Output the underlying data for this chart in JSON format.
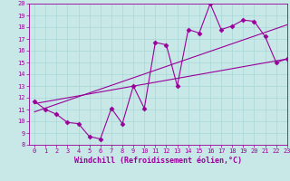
{
  "xlabel": "Windchill (Refroidissement éolien,°C)",
  "bg_color": "#c8e8e8",
  "line_color": "#990099",
  "xlim": [
    -0.5,
    23
  ],
  "ylim": [
    8,
    20
  ],
  "xticks": [
    0,
    1,
    2,
    3,
    4,
    5,
    6,
    7,
    8,
    9,
    10,
    11,
    12,
    13,
    14,
    15,
    16,
    17,
    18,
    19,
    20,
    21,
    22,
    23
  ],
  "yticks": [
    8,
    9,
    10,
    11,
    12,
    13,
    14,
    15,
    16,
    17,
    18,
    19,
    20
  ],
  "data_x": [
    0,
    1,
    2,
    3,
    4,
    5,
    6,
    7,
    8,
    9,
    10,
    11,
    12,
    13,
    14,
    15,
    16,
    17,
    18,
    19,
    20,
    21,
    22,
    23
  ],
  "data_y": [
    11.7,
    11.0,
    10.6,
    9.9,
    9.8,
    8.7,
    8.5,
    11.1,
    9.8,
    13.0,
    11.1,
    16.7,
    16.5,
    13.0,
    17.8,
    17.5,
    20.0,
    17.8,
    18.1,
    18.6,
    18.5,
    17.2,
    15.0,
    15.3
  ],
  "trend1_x": [
    0,
    23
  ],
  "trend1_y": [
    10.8,
    18.2
  ],
  "trend2_x": [
    0,
    23
  ],
  "trend2_y": [
    11.5,
    15.3
  ],
  "grid_color": "#a8d8d8",
  "font_size_label": 6,
  "font_size_tick": 5,
  "marker": "D",
  "marker_size": 2.5
}
